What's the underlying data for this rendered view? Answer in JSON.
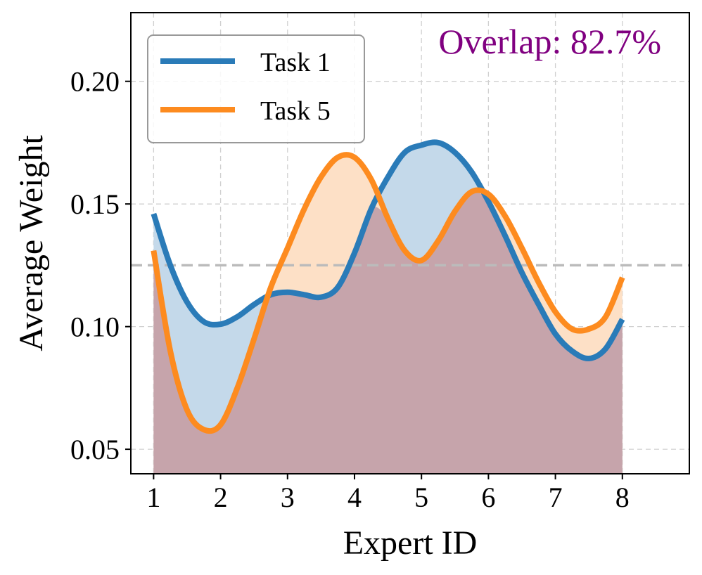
{
  "chart_data": {
    "type": "area",
    "title": "",
    "xlabel": "Expert ID",
    "ylabel": "Average Weight",
    "xlim": [
      0.66,
      9.0
    ],
    "ylim": [
      0.04,
      0.228
    ],
    "xticks": [
      1,
      2,
      3,
      4,
      5,
      6,
      7,
      8
    ],
    "xtick_labels": [
      "1",
      "2",
      "3",
      "4",
      "5",
      "6",
      "7",
      "8"
    ],
    "yticks": [
      0.05,
      0.1,
      0.15,
      0.2
    ],
    "ytick_labels": [
      "0.05",
      "0.10",
      "0.15",
      "0.20"
    ],
    "grid": true,
    "legend_position": "top-left",
    "reference_line": {
      "y": 0.125,
      "style": "dashed",
      "color": "#bbbbbb"
    },
    "annotation": {
      "text": "Overlap: 82.7%",
      "color": "#800080",
      "position": "top-right"
    },
    "overlap_fill_color": "#c6a4ab",
    "series": [
      {
        "name": "Task 1",
        "color": "#2a7bb8",
        "fill_color": "#c4d9ea",
        "x": [
          1.0,
          1.25,
          1.5,
          1.75,
          2.0,
          2.25,
          2.5,
          2.75,
          3.0,
          3.25,
          3.5,
          3.75,
          4.0,
          4.25,
          4.5,
          4.75,
          5.0,
          5.25,
          5.5,
          5.75,
          6.0,
          6.25,
          6.5,
          6.75,
          7.0,
          7.25,
          7.5,
          7.75,
          8.0
        ],
        "values": [
          0.146,
          0.125,
          0.11,
          0.102,
          0.101,
          0.104,
          0.109,
          0.113,
          0.114,
          0.113,
          0.112,
          0.116,
          0.13,
          0.148,
          0.161,
          0.171,
          0.174,
          0.175,
          0.171,
          0.163,
          0.151,
          0.137,
          0.122,
          0.109,
          0.097,
          0.09,
          0.087,
          0.091,
          0.103
        ]
      },
      {
        "name": "Task 5",
        "color": "#fd8b1f",
        "fill_color": "#fde0c6",
        "x": [
          1.0,
          1.25,
          1.5,
          1.75,
          2.0,
          2.25,
          2.5,
          2.75,
          3.0,
          3.25,
          3.5,
          3.75,
          4.0,
          4.25,
          4.5,
          4.75,
          5.0,
          5.25,
          5.5,
          5.75,
          6.0,
          6.25,
          6.5,
          6.75,
          7.0,
          7.25,
          7.5,
          7.75,
          8.0
        ],
        "values": [
          0.131,
          0.09,
          0.066,
          0.058,
          0.06,
          0.075,
          0.095,
          0.116,
          0.132,
          0.148,
          0.161,
          0.169,
          0.169,
          0.16,
          0.144,
          0.131,
          0.127,
          0.135,
          0.147,
          0.155,
          0.154,
          0.145,
          0.132,
          0.118,
          0.106,
          0.099,
          0.099,
          0.104,
          0.12
        ]
      }
    ]
  }
}
